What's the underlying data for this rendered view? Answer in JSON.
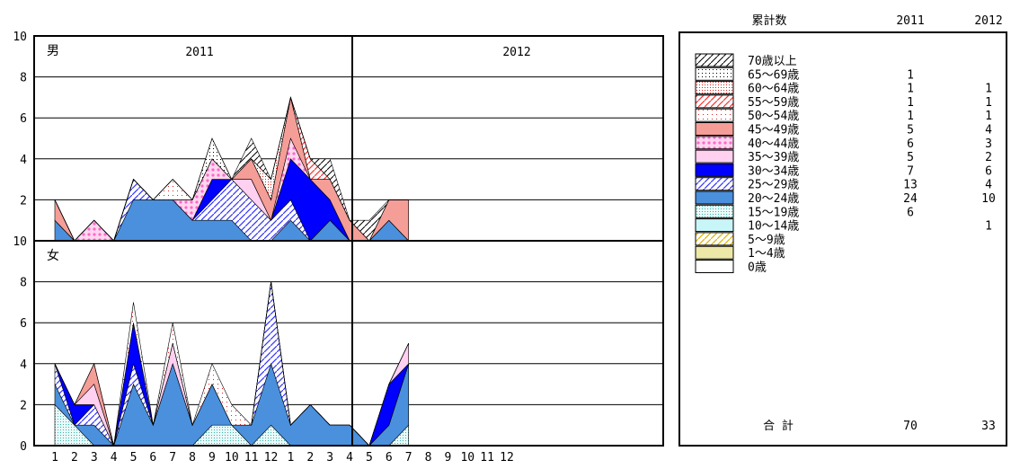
{
  "chart_data": {
    "type": "area",
    "stacked": true,
    "panels": [
      {
        "label": "男",
        "ylim": [
          0,
          10
        ]
      },
      {
        "label": "女",
        "ylim": [
          0,
          10
        ]
      }
    ],
    "year_labels": [
      "2011",
      "2012"
    ],
    "y_ticks_male": [
      "10",
      "8",
      "6",
      "4",
      "2"
    ],
    "y_ticks_female": [
      "10",
      "8",
      "6",
      "4",
      "2",
      "0"
    ],
    "x_tick_labels": [
      "1",
      "2",
      "3",
      "4",
      "5",
      "6",
      "7",
      "8",
      "9",
      "10",
      "11",
      "12",
      "1",
      "2",
      "3",
      "4",
      "5",
      "6",
      "7",
      "8",
      "9",
      "10",
      "11",
      "12"
    ],
    "legend": {
      "header": {
        "title": "累計数",
        "col1": "2011",
        "col2": "2012"
      },
      "categories": [
        {
          "label": "70歳以上",
          "pattern": "hatch-black",
          "v2011": "",
          "v2012": ""
        },
        {
          "label": "65～69歳",
          "pattern": "dots-black",
          "v2011": "1",
          "v2012": ""
        },
        {
          "label": "60～64歳",
          "pattern": "dots-red",
          "v2011": "1",
          "v2012": "1"
        },
        {
          "label": "55～59歳",
          "pattern": "hatch-red",
          "v2011": "1",
          "v2012": "1"
        },
        {
          "label": "50～54歳",
          "pattern": "dots-red-sparse",
          "v2011": "1",
          "v2012": "1"
        },
        {
          "label": "45～49歳",
          "pattern": "salmon",
          "v2011": "5",
          "v2012": "4"
        },
        {
          "label": "40～44歳",
          "pattern": "pink-dots",
          "v2011": "6",
          "v2012": "3"
        },
        {
          "label": "35～39歳",
          "pattern": "pink-light",
          "v2011": "5",
          "v2012": "2"
        },
        {
          "label": "30～34歳",
          "pattern": "blue",
          "v2011": "7",
          "v2012": "6"
        },
        {
          "label": "25～29歳",
          "pattern": "hatch-blue",
          "v2011": "13",
          "v2012": "4"
        },
        {
          "label": "20～24歳",
          "pattern": "steelblue",
          "v2011": "24",
          "v2012": "10"
        },
        {
          "label": "15～19歳",
          "pattern": "dots-teal",
          "v2011": "6",
          "v2012": ""
        },
        {
          "label": "10～14歳",
          "pattern": "lightcyan",
          "v2011": "",
          "v2012": "1"
        },
        {
          "label": "5～9歳",
          "pattern": "hatch-yellow",
          "v2011": "",
          "v2012": ""
        },
        {
          "label": "1～4歳",
          "pattern": "khaki",
          "v2011": "",
          "v2012": ""
        },
        {
          "label": "0歳",
          "pattern": "white",
          "v2011": "",
          "v2012": ""
        }
      ],
      "total": {
        "label": "合 計",
        "v2011": "70",
        "v2012": "33"
      }
    },
    "male": [
      {
        "name": "15～19歳",
        "values": [
          0,
          0,
          0,
          0,
          0,
          0,
          0,
          0,
          0,
          0,
          0,
          0,
          0,
          0,
          0,
          0,
          0,
          0,
          0
        ]
      },
      {
        "name": "20～24歳",
        "values": [
          1,
          0,
          0,
          0,
          2,
          2,
          2,
          1,
          1,
          1,
          0,
          0,
          1,
          0,
          1,
          0,
          0,
          1,
          0
        ]
      },
      {
        "name": "25～29歳",
        "values": [
          0,
          0,
          0,
          0,
          1,
          0,
          0,
          0,
          1,
          2,
          2,
          1,
          1,
          0,
          0,
          0,
          0,
          0,
          0
        ]
      },
      {
        "name": "30～34歳",
        "values": [
          0,
          0,
          0,
          0,
          0,
          0,
          0,
          0,
          1,
          0,
          0,
          0,
          2,
          3,
          1,
          0,
          0,
          0,
          0
        ]
      },
      {
        "name": "35～39歳",
        "values": [
          0,
          0,
          0,
          0,
          0,
          0,
          0,
          0,
          0,
          0,
          1,
          0,
          0,
          0,
          0,
          0,
          0,
          0,
          0
        ]
      },
      {
        "name": "40～44歳",
        "values": [
          0,
          0,
          1,
          0,
          0,
          0,
          0,
          1,
          1,
          0,
          0,
          0,
          1,
          0,
          0,
          0,
          0,
          0,
          0
        ]
      },
      {
        "name": "45～49歳",
        "values": [
          1,
          0,
          0,
          0,
          0,
          0,
          0,
          0,
          0,
          0,
          1,
          1,
          2,
          0,
          1,
          1,
          0,
          1,
          2
        ]
      },
      {
        "name": "50～54歳",
        "values": [
          0,
          0,
          0,
          0,
          0,
          0,
          1,
          0,
          0,
          0,
          0,
          0,
          0,
          0,
          0,
          0,
          0,
          0,
          0
        ]
      },
      {
        "name": "55～59歳",
        "values": [
          0,
          0,
          0,
          0,
          0,
          0,
          0,
          0,
          0,
          0,
          0,
          0,
          0,
          1,
          0,
          0,
          0,
          0,
          0
        ]
      },
      {
        "name": "60～64歳",
        "values": [
          0,
          0,
          0,
          0,
          0,
          0,
          0,
          0,
          0,
          0,
          0,
          1,
          0,
          0,
          0,
          0,
          0,
          0,
          0
        ]
      },
      {
        "name": "65～69歳",
        "values": [
          0,
          0,
          0,
          0,
          0,
          0,
          0,
          0,
          1,
          0,
          0,
          0,
          0,
          0,
          0,
          0,
          0,
          0,
          0
        ]
      },
      {
        "name": "70歳以上",
        "values": [
          0,
          0,
          0,
          0,
          0,
          0,
          0,
          0,
          0,
          0,
          1,
          0,
          0,
          0,
          1,
          0,
          1,
          0,
          0
        ]
      }
    ],
    "female": [
      {
        "name": "15～19歳",
        "values": [
          2,
          1,
          0,
          0,
          0,
          0,
          0,
          0,
          1,
          1,
          0,
          1,
          0,
          0,
          0,
          0,
          0,
          0,
          1
        ]
      },
      {
        "name": "20～24歳",
        "values": [
          1,
          0,
          1,
          0,
          3,
          1,
          4,
          1,
          2,
          0,
          1,
          3,
          1,
          2,
          1,
          1,
          0,
          1,
          3
        ]
      },
      {
        "name": "25～29歳",
        "values": [
          1,
          0,
          1,
          0,
          1,
          0,
          0,
          0,
          0,
          0,
          0,
          4,
          0,
          0,
          0,
          0,
          0,
          0,
          0
        ]
      },
      {
        "name": "30～34歳",
        "values": [
          0,
          1,
          0,
          0,
          2,
          0,
          0,
          0,
          0,
          0,
          0,
          0,
          0,
          0,
          0,
          0,
          0,
          2,
          0
        ]
      },
      {
        "name": "35～39歳",
        "values": [
          0,
          0,
          1,
          0,
          0,
          0,
          1,
          0,
          0,
          0,
          0,
          0,
          0,
          0,
          0,
          0,
          0,
          0,
          1
        ]
      },
      {
        "name": "45～49歳",
        "values": [
          0,
          0,
          1,
          0,
          0,
          0,
          0,
          0,
          0,
          0,
          0,
          0,
          0,
          0,
          0,
          0,
          0,
          0,
          0
        ]
      },
      {
        "name": "50～54歳",
        "values": [
          0,
          0,
          0,
          0,
          1,
          0,
          1,
          0,
          1,
          1,
          0,
          0,
          0,
          0,
          0,
          0,
          0,
          0,
          0
        ]
      }
    ]
  }
}
